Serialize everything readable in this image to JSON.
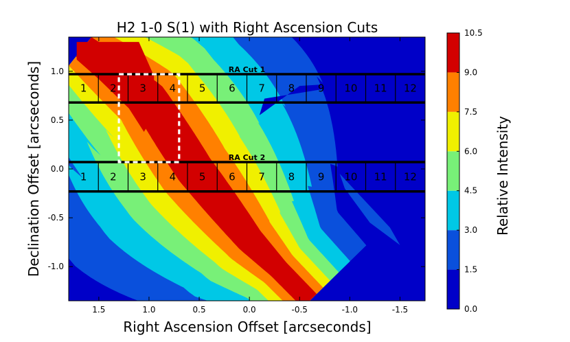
{
  "chart_data": {
    "type": "heatmap",
    "title": "H2 1-0 S(1) with Right Ascension Cuts",
    "xlabel": "Right Ascension Offset [arcseconds]",
    "ylabel": "Declination Offset [arcseconds]",
    "colorbar_label": "Relative Intensity",
    "xlim": [
      1.8,
      -1.75
    ],
    "ylim": [
      -1.35,
      1.35
    ],
    "x_ticks": [
      {
        "value": 1.5,
        "label": "1.5"
      },
      {
        "value": 1.0,
        "label": "1.0"
      },
      {
        "value": 0.5,
        "label": "0.5"
      },
      {
        "value": 0.0,
        "label": "0.0"
      },
      {
        "value": -0.5,
        "label": "-0.5"
      },
      {
        "value": -1.0,
        "label": "-1.0"
      },
      {
        "value": -1.5,
        "label": "-1.5"
      }
    ],
    "y_ticks": [
      {
        "value": 1.0,
        "label": "1.0"
      },
      {
        "value": 0.5,
        "label": "0.5"
      },
      {
        "value": 0.0,
        "label": "0.0"
      },
      {
        "value": -0.5,
        "label": "-0.5"
      },
      {
        "value": -1.0,
        "label": "-1.0"
      }
    ],
    "levels": [
      0.0,
      1.5,
      3.0,
      4.5,
      6.0,
      7.5,
      9.0,
      10.5
    ],
    "level_labels": [
      "0.0",
      "1.5",
      "3.0",
      "4.5",
      "6.0",
      "7.5",
      "9.0",
      "10.5"
    ],
    "level_colors": [
      "#0000c8",
      "#0a50dc",
      "#00c8e6",
      "#78f078",
      "#f0f000",
      "#ff8000",
      "#d20000"
    ],
    "ridge": {
      "points": [
        [
          1.65,
          1.25
        ],
        [
          1.0,
          0.72
        ],
        [
          0.55,
          0.0
        ],
        [
          0.0,
          -0.72
        ],
        [
          -0.6,
          -1.35
        ]
      ]
    },
    "ra_cuts": [
      {
        "label": "RA Cut 1",
        "dec_min": 0.68,
        "dec_max": 0.97,
        "ra_start": 1.8,
        "ra_end": -1.75,
        "cells": [
          "1",
          "2",
          "3",
          "4",
          "5",
          "6",
          "7",
          "8",
          "9",
          "10",
          "11",
          "12"
        ]
      },
      {
        "label": "RA Cut 2",
        "dec_min": -0.23,
        "dec_max": 0.07,
        "ra_start": 1.8,
        "ra_end": -1.75,
        "cells": [
          "1",
          "2",
          "3",
          "4",
          "5",
          "6",
          "7",
          "8",
          "9",
          "10",
          "11",
          "12"
        ]
      }
    ],
    "highlight_box": {
      "ra_min": 0.7,
      "ra_max": 1.3,
      "dec_min": 0.07,
      "dec_max": 0.97,
      "style": "dashed white"
    }
  }
}
